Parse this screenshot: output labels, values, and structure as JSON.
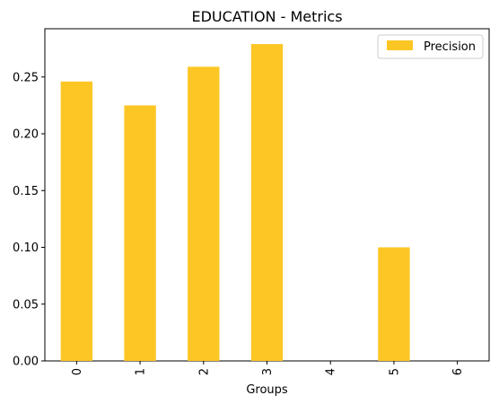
{
  "chart_data": {
    "type": "bar",
    "title": "EDUCATION - Metrics",
    "xlabel": "Groups",
    "ylabel": "",
    "categories": [
      "0",
      "1",
      "2",
      "3",
      "4",
      "5",
      "6"
    ],
    "series": [
      {
        "name": "Precision",
        "values": [
          0.246,
          0.225,
          0.259,
          0.279,
          0.0,
          0.1,
          0.0
        ],
        "color": "#fcc624"
      }
    ],
    "ylim": [
      0,
      0.2925
    ],
    "yticks": [
      0.0,
      0.05,
      0.1,
      0.15,
      0.2,
      0.25
    ],
    "ytick_labels": [
      "0.00",
      "0.05",
      "0.10",
      "0.15",
      "0.20",
      "0.25"
    ],
    "legend_position": "top-right",
    "grid": false
  }
}
